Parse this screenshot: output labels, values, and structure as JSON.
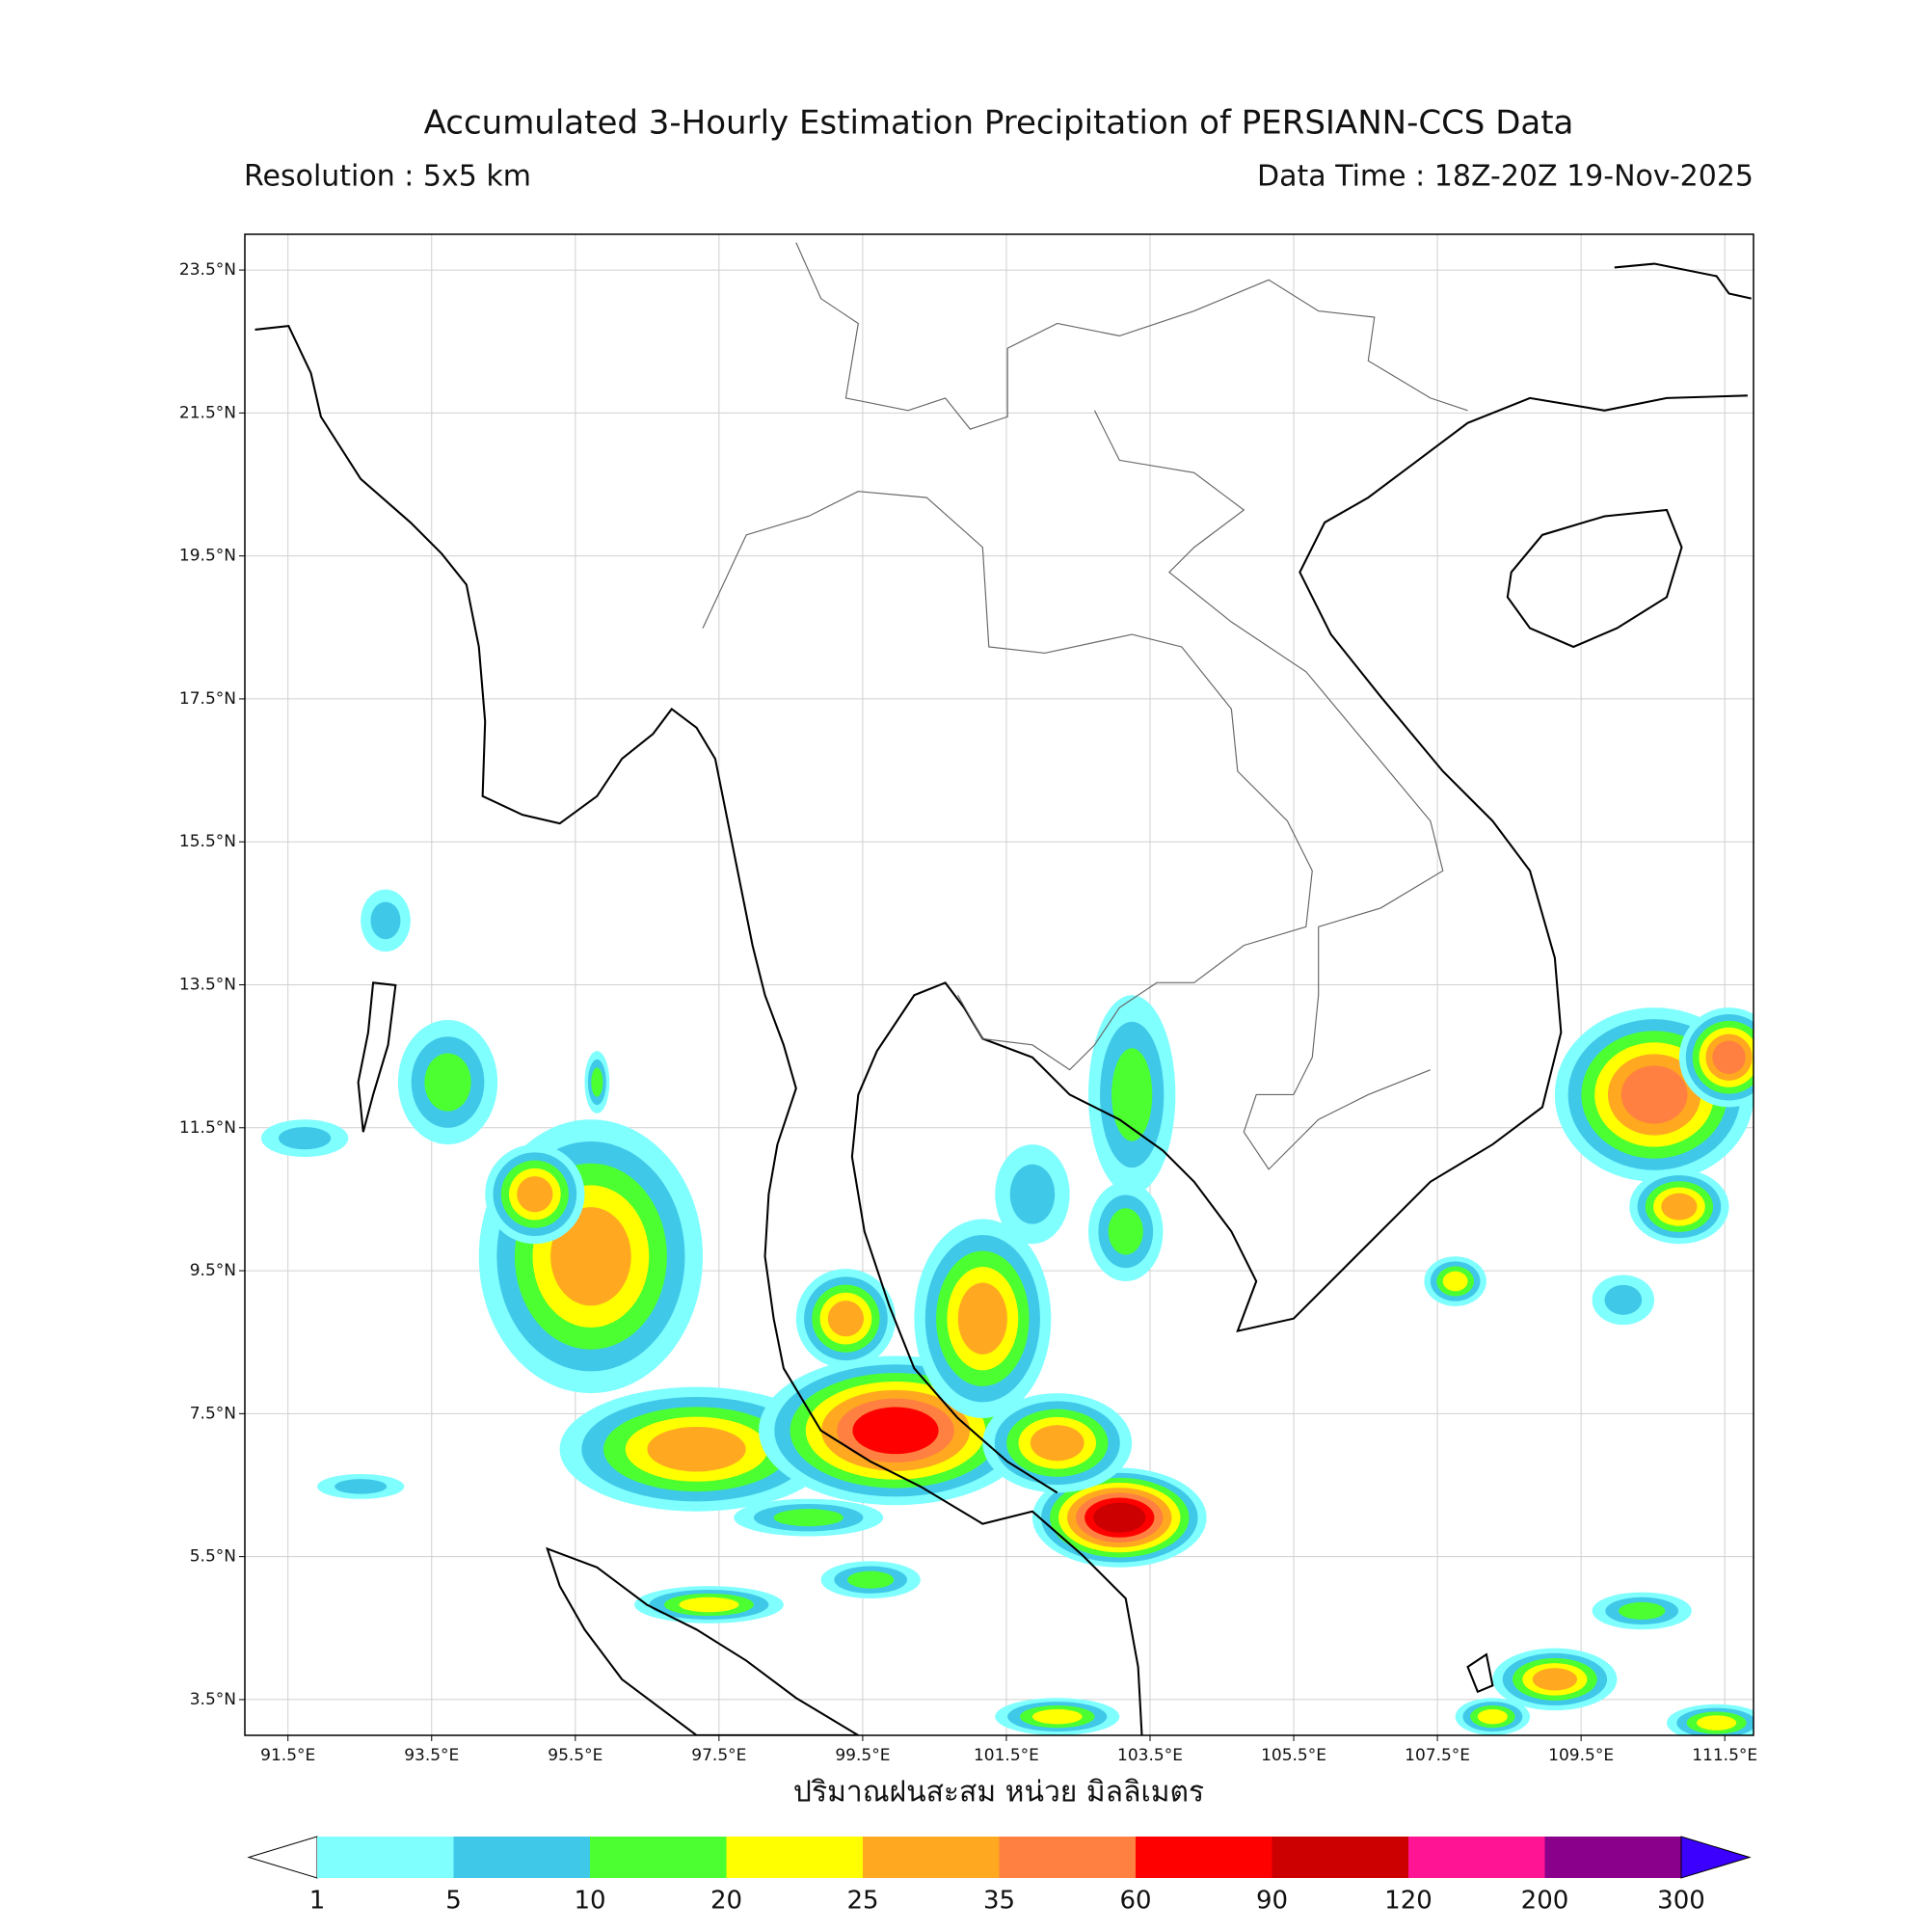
{
  "header": {
    "title": "Accumulated 3-Hourly Estimation Precipitation of PERSIANN-CCS Data",
    "resolution": "Resolution : 5x5 km",
    "data_time": "Data Time : 18Z-20Z 19-Nov-2025"
  },
  "map": {
    "xlim": [
      90.9,
      111.9
    ],
    "ylim": [
      3.0,
      24.0
    ],
    "xticks": [
      {
        "value": 91.5,
        "label": "91.5°E"
      },
      {
        "value": 93.5,
        "label": "93.5°E"
      },
      {
        "value": 95.5,
        "label": "95.5°E"
      },
      {
        "value": 97.5,
        "label": "97.5°E"
      },
      {
        "value": 99.5,
        "label": "99.5°E"
      },
      {
        "value": 101.5,
        "label": "101.5°E"
      },
      {
        "value": 103.5,
        "label": "103.5°E"
      },
      {
        "value": 105.5,
        "label": "105.5°E"
      },
      {
        "value": 107.5,
        "label": "107.5°E"
      },
      {
        "value": 109.5,
        "label": "109.5°E"
      },
      {
        "value": 111.5,
        "label": "111.5°E"
      }
    ],
    "yticks": [
      {
        "value": 3.5,
        "label": "3.5°N"
      },
      {
        "value": 5.5,
        "label": "5.5°N"
      },
      {
        "value": 7.5,
        "label": "7.5°N"
      },
      {
        "value": 9.5,
        "label": "9.5°N"
      },
      {
        "value": 11.5,
        "label": "11.5°N"
      },
      {
        "value": 13.5,
        "label": "13.5°N"
      },
      {
        "value": 15.5,
        "label": "15.5°N"
      },
      {
        "value": 17.5,
        "label": "17.5°N"
      },
      {
        "value": 19.5,
        "label": "19.5°N"
      },
      {
        "value": 21.5,
        "label": "21.5°N"
      },
      {
        "value": 23.5,
        "label": "23.5°N"
      }
    ],
    "grid": true,
    "xlabel": "ปริมาณฝนสะสม หน่วย มิลลิเมตร"
  },
  "colorbar": {
    "levels": [
      1,
      5,
      10,
      20,
      25,
      35,
      60,
      90,
      120,
      200,
      300
    ],
    "colors": [
      "#80ffff",
      "#40c8e8",
      "#4cff30",
      "#ffff00",
      "#ffa820",
      "#ff8040",
      "#ff0000",
      "#cc0000",
      "#ff1493",
      "#8b008b"
    ],
    "under_color": "#ffffff",
    "over_color": "#3c00ff"
  }
}
